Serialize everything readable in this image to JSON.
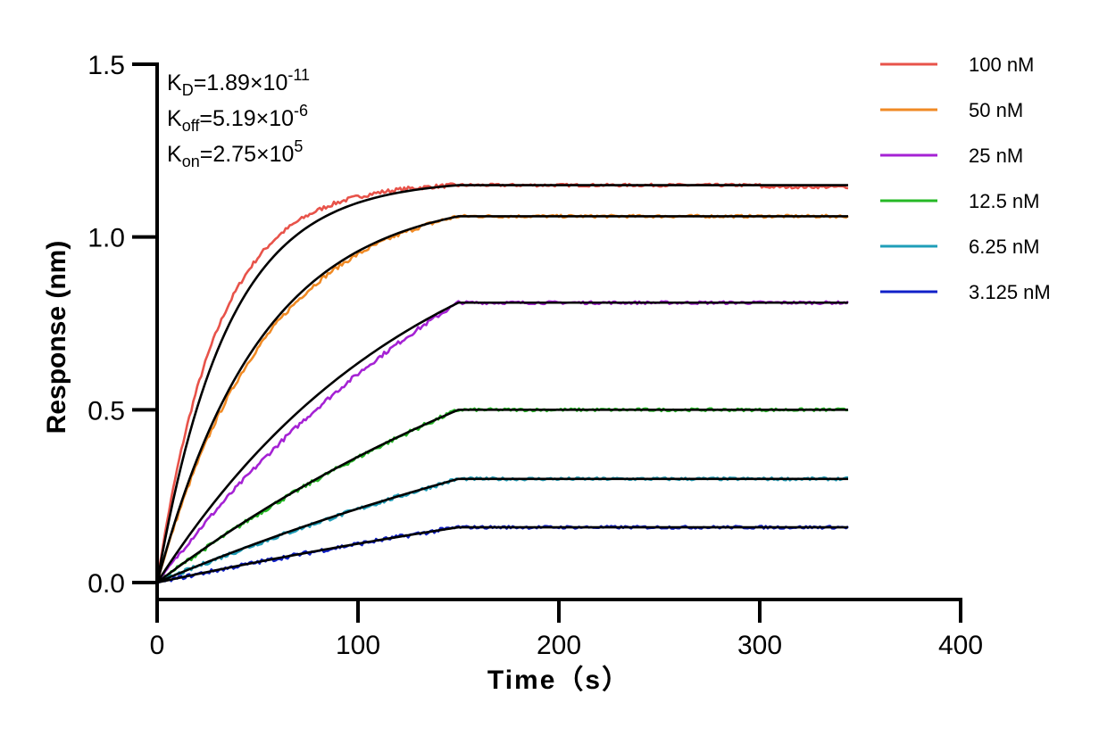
{
  "chart_data": {
    "type": "line",
    "xlabel": "Time（s）",
    "ylabel": "Response (nm)",
    "xlim": [
      0,
      400
    ],
    "ylim": [
      0,
      1.5
    ],
    "x_ticks": [
      0,
      100,
      200,
      300,
      400
    ],
    "y_ticks": [
      0.0,
      0.5,
      1.0,
      1.5
    ],
    "x_tick_labels": [
      "0",
      "100",
      "200",
      "300",
      "400"
    ],
    "y_tick_labels": [
      "0.0",
      "0.5",
      "1.0",
      "1.5"
    ],
    "grid": false,
    "legend_position": "top-right",
    "annotations": [
      {
        "prefix": "K",
        "sub": "D",
        "value": "=1.89×10",
        "sup": "-11"
      },
      {
        "prefix": "K",
        "sub": "off",
        "value": "=5.19×10",
        "sup": "-6"
      },
      {
        "prefix": "K",
        "sub": "on",
        "value": "=2.75×10",
        "sup": "5"
      }
    ],
    "association_end_time": 150,
    "end_time": 344,
    "fit_color": "#000000",
    "series": [
      {
        "name": "100 nM",
        "color": "#e8534a",
        "plateau": 1.15,
        "tau": 30,
        "fit_tau": 35
      },
      {
        "name": "50 nM",
        "color": "#f08a24",
        "plateau": 1.06,
        "tau": 55,
        "fit_tau": 52
      },
      {
        "name": "25 nM",
        "color": "#a522d4",
        "plateau": 0.81,
        "tau": 200,
        "fit_tau": 130
      },
      {
        "name": "12.5 nM",
        "color": "#25b825",
        "plateau": 0.5,
        "tau": 280,
        "fit_tau": 260
      },
      {
        "name": "6.25 nM",
        "color": "#1f9eb8",
        "plateau": 0.3,
        "tau": 400,
        "fit_tau": 350
      },
      {
        "name": "3.125 nM",
        "color": "#1020c8",
        "plateau": 0.16,
        "tau": 500,
        "fit_tau": 450
      }
    ]
  }
}
